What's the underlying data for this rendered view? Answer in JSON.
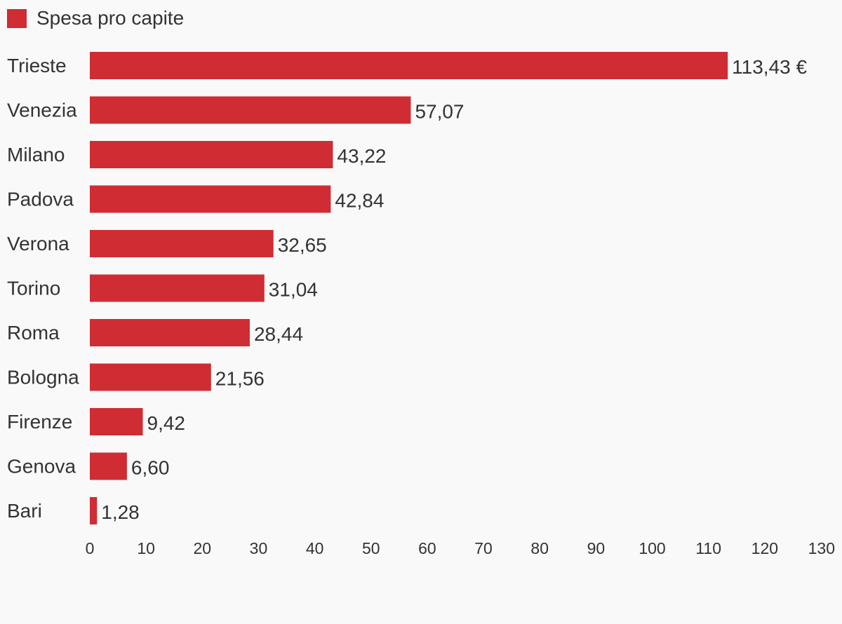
{
  "colors": {
    "bar": "#d02c33",
    "background": "#f9f9f9",
    "text": "#333333"
  },
  "chart_data": {
    "type": "bar",
    "orientation": "horizontal",
    "legend": {
      "label": "Spesa pro capite",
      "placement": "top-left"
    },
    "categories": [
      "Trieste",
      "Venezia",
      "Milano",
      "Padova",
      "Verona",
      "Torino",
      "Roma",
      "Bologna",
      "Firenze",
      "Genova",
      "Bari"
    ],
    "series": [
      {
        "name": "Spesa pro capite",
        "values": [
          113.43,
          57.07,
          43.22,
          42.84,
          32.65,
          31.04,
          28.44,
          21.56,
          9.42,
          6.6,
          1.28
        ],
        "labels": [
          "113,43 €",
          "57,07",
          "43,22",
          "42,84",
          "32,65",
          "31,04",
          "28,44",
          "21,56",
          "9,42",
          "6,60",
          "1,28"
        ]
      }
    ],
    "xlim": [
      0,
      130
    ],
    "xticks": [
      0,
      10,
      20,
      30,
      40,
      50,
      60,
      70,
      80,
      90,
      100,
      110,
      120,
      130
    ],
    "grid": false
  }
}
